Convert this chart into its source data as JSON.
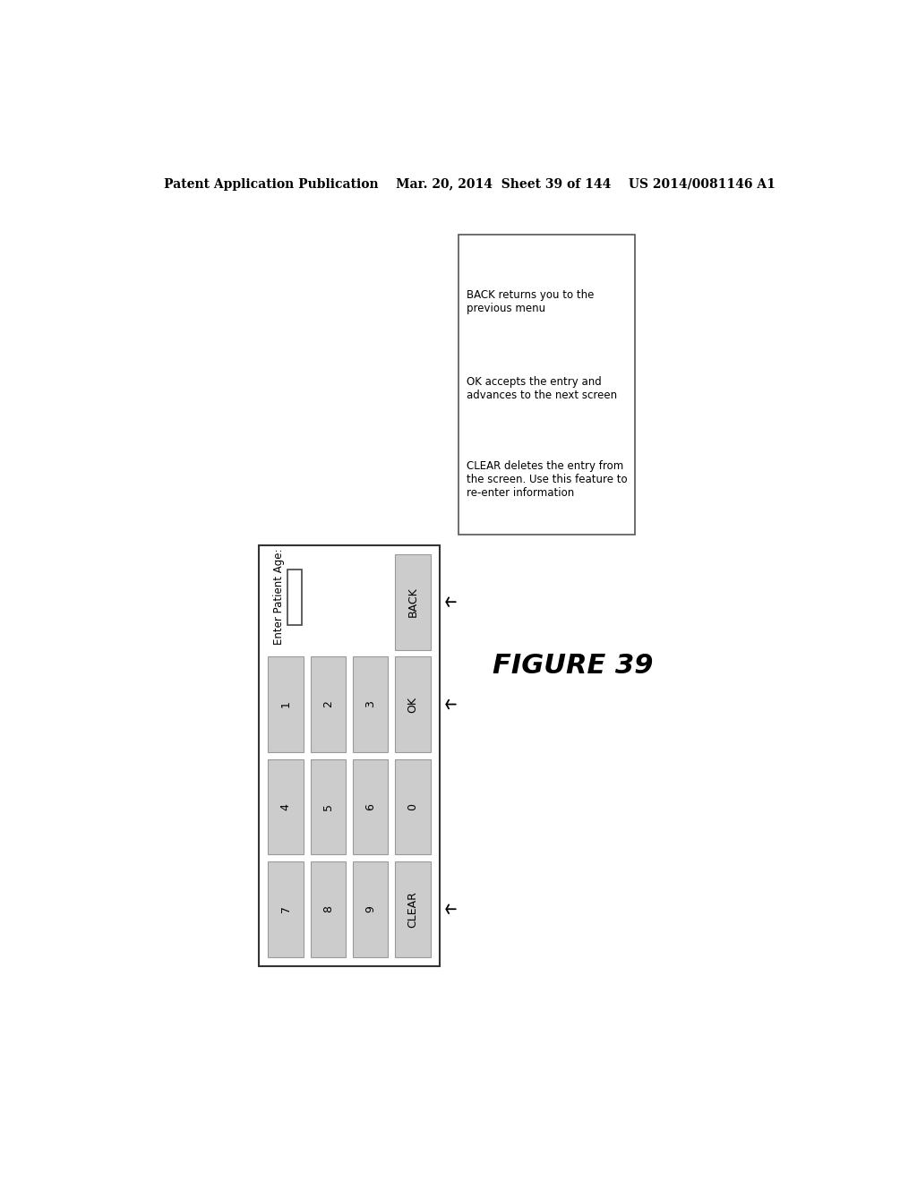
{
  "title": "Patent Application Publication    Mar. 20, 2014  Sheet 39 of 144    US 2014/0081146 A1",
  "figure_label": "FIGURE 39",
  "background_color": "#ffffff",
  "header_fontsize": 10,
  "figure_label_fontsize": 22,
  "btn_gray": "#cccccc",
  "btn_white": "#ffffff",
  "border_dark": "#444444",
  "border_light": "#888888",
  "callout_entries": [
    {
      "text": "BACK returns you to the\nprevious menu",
      "arrow_target_row": 0
    },
    {
      "text": "OK accepts the entry and\nadvances to the next screen",
      "arrow_target_row": 1
    },
    {
      "text": "CLEAR deletes the entry from\nthe screen. Use this feature to\nre-enter information",
      "arrow_target_row": 3
    }
  ]
}
